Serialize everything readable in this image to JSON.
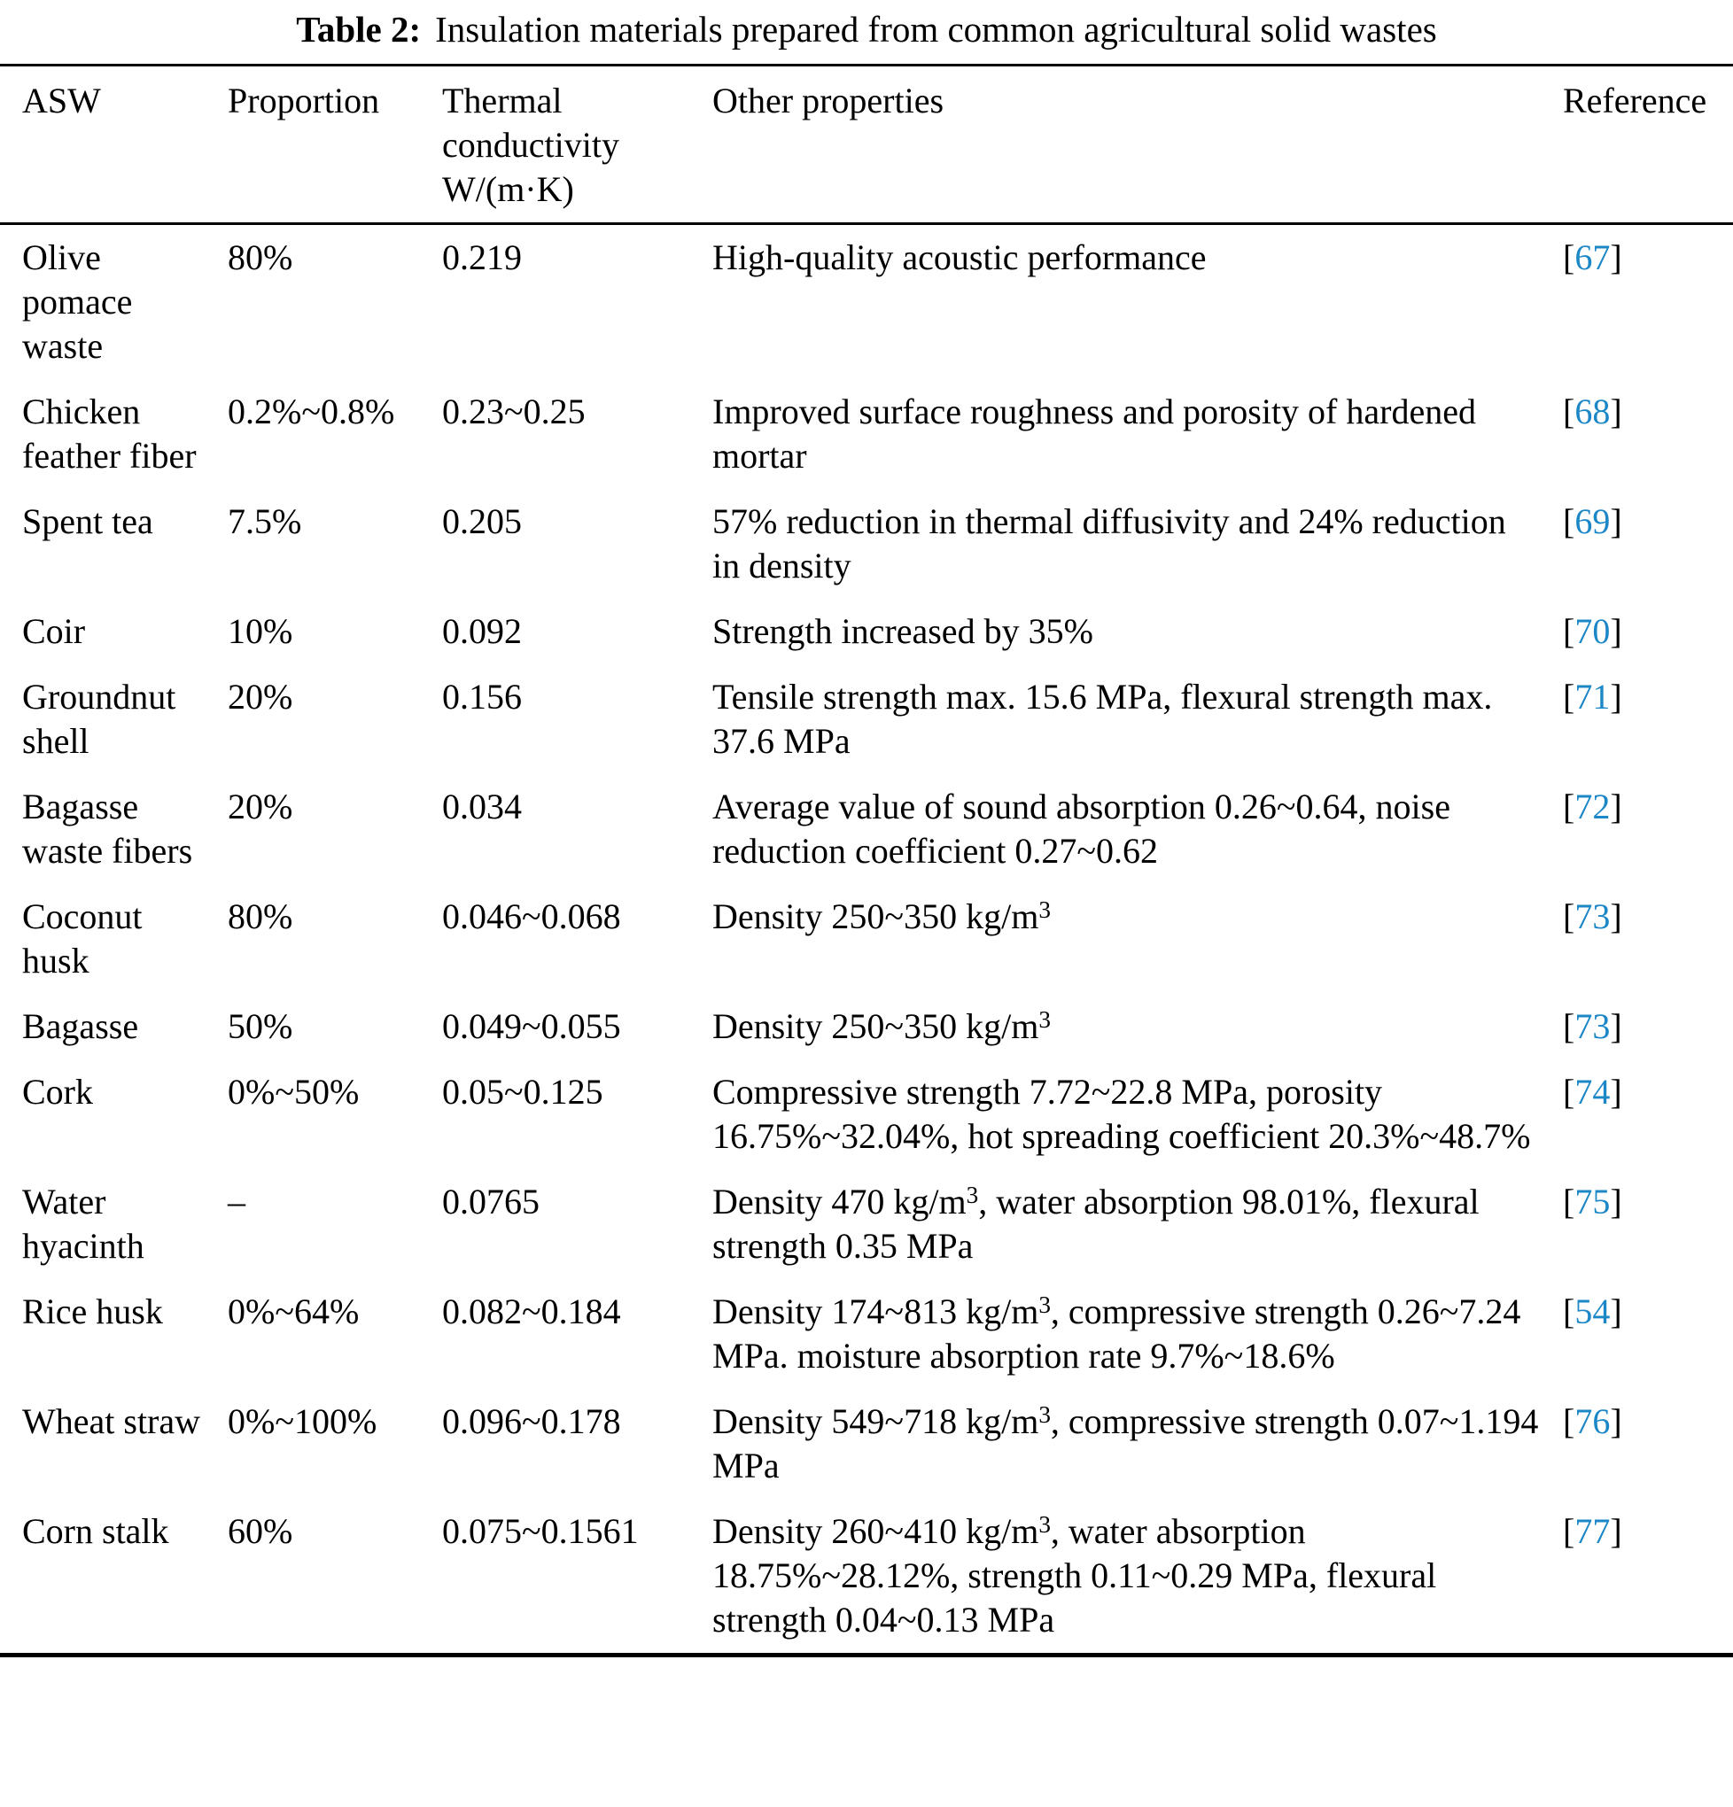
{
  "caption": {
    "label": "Table 2:",
    "text": "Insulation materials prepared from common agricultural solid wastes"
  },
  "colors": {
    "text": "#000000",
    "rule": "#000000",
    "reference_link": "#1c87c6"
  },
  "table": {
    "columns": [
      "ASW",
      "Proportion",
      "Thermal conductivity W/(m·K)",
      "Other properties",
      "Reference"
    ],
    "rows": [
      {
        "asw": "Olive pomace waste",
        "proportion": "80%",
        "conductivity": "0.219",
        "properties": "High-quality acoustic performance",
        "reference": "67"
      },
      {
        "asw": "Chicken feather fiber",
        "proportion": "0.2%~0.8%",
        "conductivity": "0.23~0.25",
        "properties": "Improved surface roughness and porosity of hardened mortar",
        "reference": "68"
      },
      {
        "asw": "Spent tea",
        "proportion": "7.5%",
        "conductivity": "0.205",
        "properties": "57% reduction in thermal diffusivity and 24% reduction in density",
        "reference": "69"
      },
      {
        "asw": "Coir",
        "proportion": "10%",
        "conductivity": "0.092",
        "properties": "Strength increased by 35%",
        "reference": "70"
      },
      {
        "asw": "Groundnut shell",
        "proportion": "20%",
        "conductivity": "0.156",
        "properties": "Tensile strength max. 15.6 MPa, flexural strength max. 37.6 MPa",
        "reference": "71"
      },
      {
        "asw": "Bagasse waste fibers",
        "proportion": "20%",
        "conductivity": "0.034",
        "properties": "Average value of sound absorption 0.26~0.64, noise reduction coefficient 0.27~0.62",
        "reference": "72"
      },
      {
        "asw": "Coconut husk",
        "proportion": "80%",
        "conductivity": "0.046~0.068",
        "properties": "Density 250~350 kg/m^{3}",
        "reference": "73"
      },
      {
        "asw": "Bagasse",
        "proportion": "50%",
        "conductivity": "0.049~0.055",
        "properties": "Density 250~350 kg/m^{3}",
        "reference": "73"
      },
      {
        "asw": "Cork",
        "proportion": "0%~50%",
        "conductivity": "0.05~0.125",
        "properties": "Compressive strength 7.72~22.8 MPa, porosity 16.75%~32.04%, hot spreading coefficient 20.3%~48.7%",
        "reference": "74"
      },
      {
        "asw": "Water hyacinth",
        "proportion": "–",
        "conductivity": "0.0765",
        "properties": "Density 470 kg/m^{3}, water absorption 98.01%, flexural strength 0.35 MPa",
        "reference": "75"
      },
      {
        "asw": "Rice husk",
        "proportion": "0%~64%",
        "conductivity": "0.082~0.184",
        "properties": "Density 174~813 kg/m^{3}, compressive strength 0.26~7.24 MPa. moisture absorption rate 9.7%~18.6%",
        "reference": "54"
      },
      {
        "asw": "Wheat straw",
        "proportion": "0%~100%",
        "conductivity": "0.096~0.178",
        "properties": "Density 549~718 kg/m^{3}, compressive strength 0.07~1.194 MPa",
        "reference": "76"
      },
      {
        "asw": "Corn stalk",
        "proportion": "60%",
        "conductivity": "0.075~0.1561",
        "properties": "Density 260~410 kg/m^{3}, water absorption 18.75%~28.12%, strength 0.11~0.29 MPa, flexural strength 0.04~0.13 MPa",
        "reference": "77"
      }
    ]
  }
}
